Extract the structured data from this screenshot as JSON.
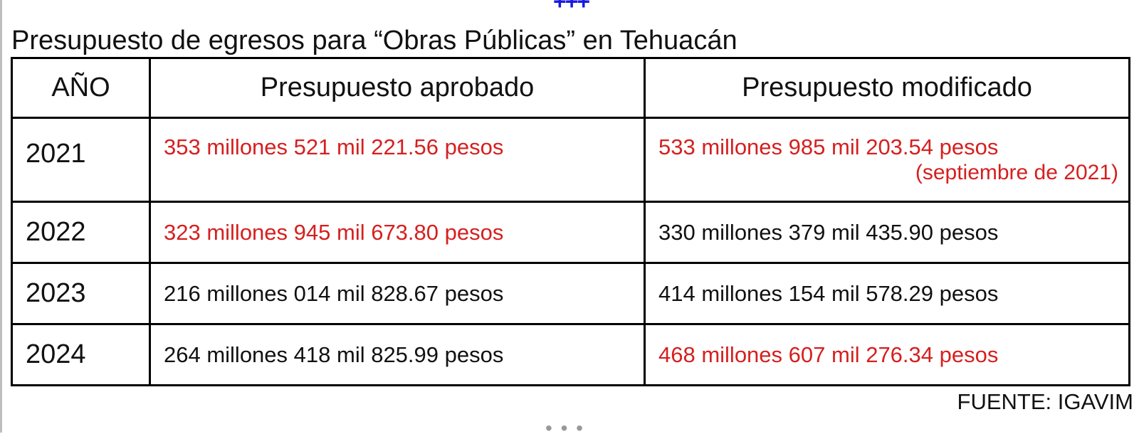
{
  "separator_top": "+++",
  "title": "Presupuesto de egresos para “Obras Públicas” en Tehuacán",
  "table": {
    "headers": {
      "year": "AÑO",
      "approved": "Presupuesto aprobado",
      "modified": "Presupuesto modificado"
    },
    "rows": [
      {
        "year": "2021",
        "approved": "353 millones 521 mil 221.56 pesos",
        "approved_highlight": true,
        "modified": "533 millones 985 mil 203.54 pesos",
        "modified_note": "(septiembre de 2021)",
        "modified_highlight": true
      },
      {
        "year": "2022",
        "approved": "323 millones 945 mil 673.80 pesos",
        "approved_highlight": true,
        "modified": "330 millones 379 mil 435.90 pesos",
        "modified_highlight": false
      },
      {
        "year": "2023",
        "approved": "216 millones 014 mil 828.67 pesos",
        "approved_highlight": false,
        "modified": "414 millones 154 mil 578.29 pesos",
        "modified_highlight": false
      },
      {
        "year": "2024",
        "approved": "264 millones 418 mil 825.99 pesos",
        "approved_highlight": false,
        "modified": "468 millones 607 mil 276.34 pesos",
        "modified_highlight": true
      }
    ]
  },
  "source": "FUENTE: IGAVIM",
  "colors": {
    "highlight_text": "#d61f1f",
    "normal_text": "#111111",
    "separator": "#1a1adf"
  }
}
